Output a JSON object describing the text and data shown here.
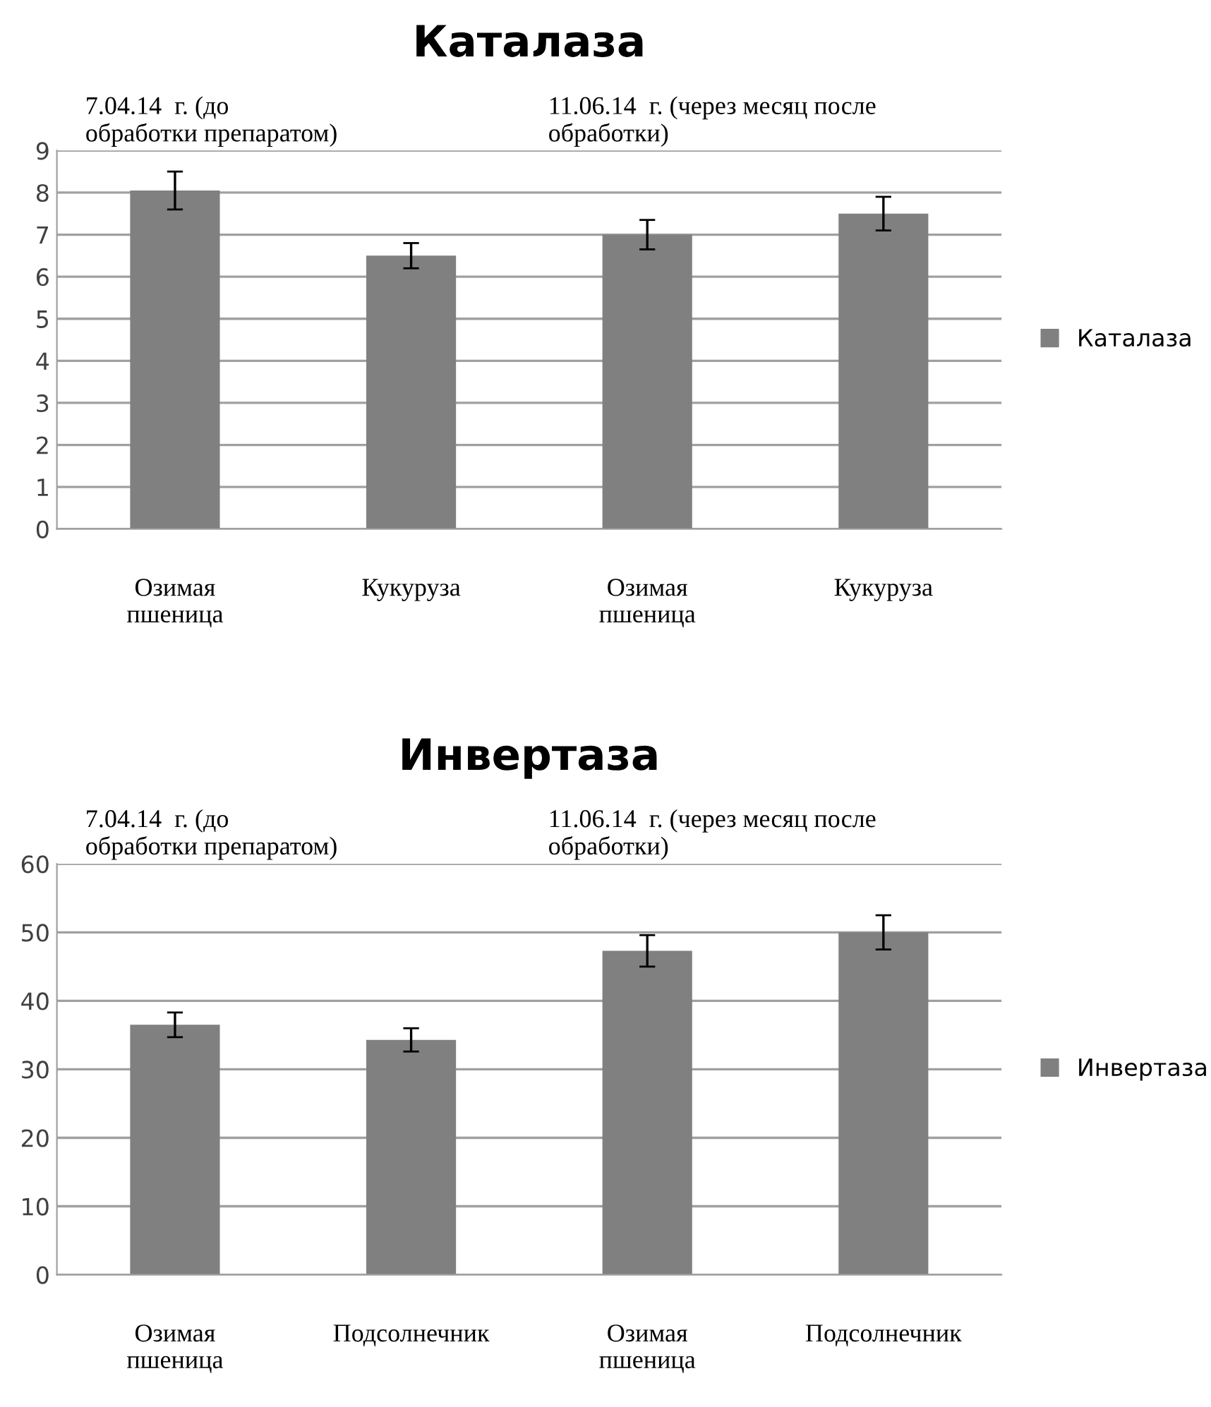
{
  "chart_data": [
    {
      "type": "bar",
      "title": "Каталаза",
      "categories": [
        "Озимая\nпшеница",
        "Кукуруза",
        "Озимая\nпшеница",
        "Кукуруза"
      ],
      "series": [
        {
          "name": "Каталаза",
          "color": "#808080",
          "values": [
            8.05,
            6.5,
            7.0,
            7.5
          ],
          "errors": [
            0.45,
            0.3,
            0.35,
            0.4
          ]
        }
      ],
      "ylim": [
        0,
        9
      ],
      "yticks": [
        0,
        1,
        2,
        3,
        4,
        5,
        6,
        7,
        8,
        9
      ],
      "grid": "y",
      "legend": "right",
      "annotations": [
        "7.04.14  г. (до\nобработки препаратом)",
        "11.06.14  г. (через месяц после\nобработки)"
      ]
    },
    {
      "type": "bar",
      "title": "Инвертаза",
      "categories": [
        "Озимая\nпшеница",
        "Подсолнечник",
        "Озимая\nпшеница",
        "Подсолнечник"
      ],
      "series": [
        {
          "name": "Инвертаза",
          "color": "#808080",
          "values": [
            36.5,
            34.3,
            47.3,
            50.0
          ],
          "errors": [
            1.8,
            1.7,
            2.3,
            2.5
          ]
        }
      ],
      "ylim": [
        0,
        60
      ],
      "yticks": [
        0,
        10,
        20,
        30,
        40,
        50,
        60
      ],
      "grid": "y",
      "legend": "right",
      "annotations": [
        "7.04.14  г. (до\nобработки препаратом)",
        "11.06.14  г. (через месяц после\nобработки)"
      ]
    }
  ]
}
